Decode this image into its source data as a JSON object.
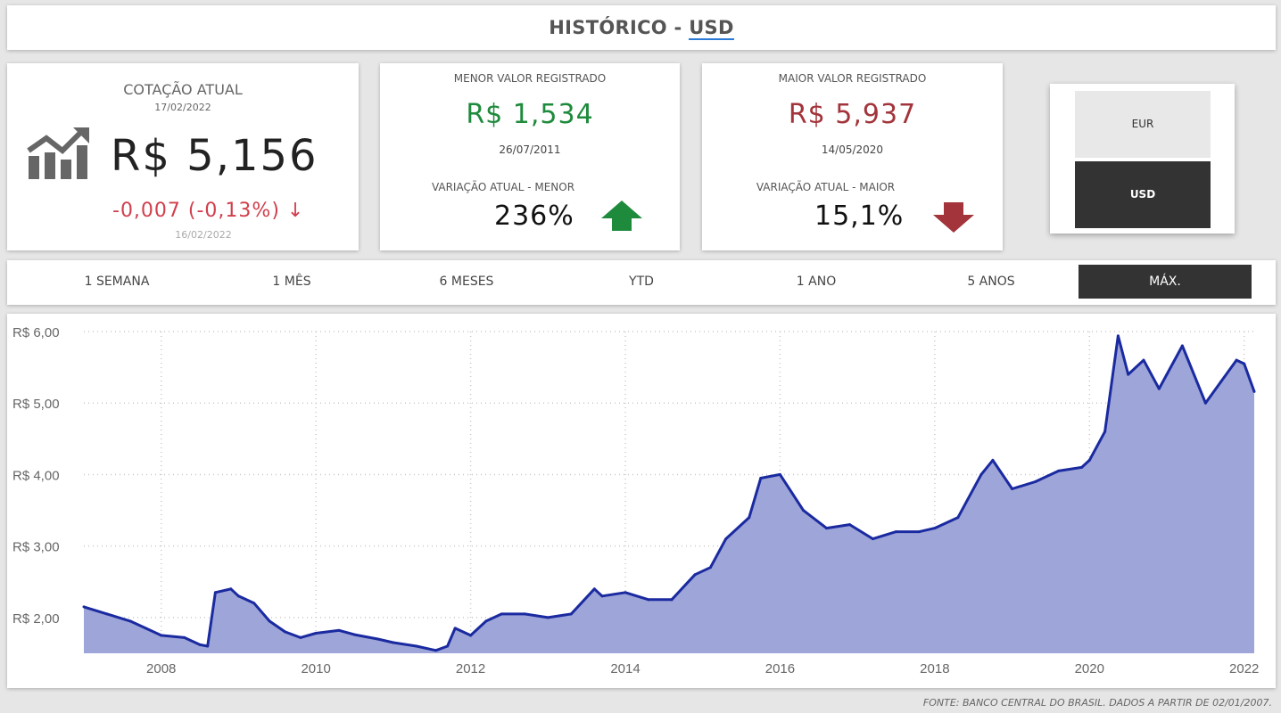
{
  "header": {
    "title_prefix": "HISTÓRICO - ",
    "currency": "USD"
  },
  "current": {
    "label": "COTAÇÃO ATUAL",
    "date": "17/02/2022",
    "value": "R$ 5,156",
    "change": "-0,007 (-0,13%) ↓",
    "prev_date": "16/02/2022",
    "icon": "chart-up-icon"
  },
  "min_card": {
    "label": "MENOR VALOR REGISTRADO",
    "value": "R$ 1,534",
    "date": "26/07/2011",
    "variation_label": "VARIAÇÃO ATUAL - MENOR",
    "variation_value": "236%",
    "arrow": "up-arrow-icon"
  },
  "max_card": {
    "label": "MAIOR VALOR REGISTRADO",
    "value": "R$ 5,937",
    "date": "14/05/2020",
    "variation_label": "VARIAÇÃO ATUAL - MAIOR",
    "variation_value": "15,1%",
    "arrow": "down-arrow-icon"
  },
  "currency_switch": {
    "options": [
      "EUR",
      "USD"
    ],
    "selected": "USD"
  },
  "periods": {
    "items": [
      "1 SEMANA",
      "1 MÊS",
      "6 MESES",
      "YTD",
      "1 ANO",
      "5 ANOS",
      "MÁX."
    ],
    "selected": "MÁX."
  },
  "colors": {
    "positive": "#1e8a3c",
    "negative": "#a3343b",
    "line": "#1a2aa0",
    "fill": "#9ea5d8",
    "active_tab": "#333333"
  },
  "chart_data": {
    "type": "area",
    "ylim": [
      1.5,
      6.0
    ],
    "yticks": [
      2,
      3,
      4,
      5,
      6
    ],
    "ytick_labels": [
      "R$ 2,00",
      "R$ 3,00",
      "R$ 4,00",
      "R$ 5,00",
      "R$ 6,00"
    ],
    "xticks": [
      2008,
      2010,
      2012,
      2014,
      2016,
      2018,
      2020,
      2022
    ],
    "xlim": [
      2007.0,
      2022.13
    ],
    "grid": true,
    "x": [
      2007.0,
      2007.3,
      2007.6,
      2007.8,
      2008.0,
      2008.3,
      2008.5,
      2008.6,
      2008.7,
      2008.9,
      2009.0,
      2009.2,
      2009.4,
      2009.6,
      2009.8,
      2010.0,
      2010.3,
      2010.5,
      2010.8,
      2011.0,
      2011.3,
      2011.55,
      2011.7,
      2011.8,
      2012.0,
      2012.2,
      2012.4,
      2012.7,
      2013.0,
      2013.3,
      2013.6,
      2013.7,
      2014.0,
      2014.3,
      2014.6,
      2014.9,
      2015.1,
      2015.3,
      2015.6,
      2015.75,
      2016.0,
      2016.3,
      2016.6,
      2016.9,
      2017.2,
      2017.5,
      2017.8,
      2018.0,
      2018.3,
      2018.6,
      2018.75,
      2019.0,
      2019.3,
      2019.6,
      2019.9,
      2020.0,
      2020.2,
      2020.37,
      2020.5,
      2020.7,
      2020.9,
      2021.0,
      2021.2,
      2021.5,
      2021.7,
      2021.9,
      2022.0,
      2022.13
    ],
    "y": [
      2.15,
      2.05,
      1.95,
      1.85,
      1.75,
      1.72,
      1.62,
      1.6,
      2.35,
      2.4,
      2.3,
      2.2,
      1.95,
      1.8,
      1.72,
      1.78,
      1.82,
      1.76,
      1.7,
      1.65,
      1.6,
      1.54,
      1.6,
      1.85,
      1.75,
      1.95,
      2.05,
      2.05,
      2.0,
      2.05,
      2.4,
      2.3,
      2.35,
      2.25,
      2.25,
      2.6,
      2.7,
      3.1,
      3.4,
      3.95,
      4.0,
      3.5,
      3.25,
      3.3,
      3.1,
      3.2,
      3.2,
      3.25,
      3.4,
      4.0,
      4.2,
      3.8,
      3.9,
      4.05,
      4.1,
      4.2,
      4.6,
      5.94,
      5.4,
      5.6,
      5.2,
      5.4,
      5.8,
      5.0,
      5.3,
      5.6,
      5.55,
      5.16
    ]
  },
  "footer": "FONTE: BANCO CENTRAL DO BRASIL. DADOS A PARTIR DE 02/01/2007."
}
